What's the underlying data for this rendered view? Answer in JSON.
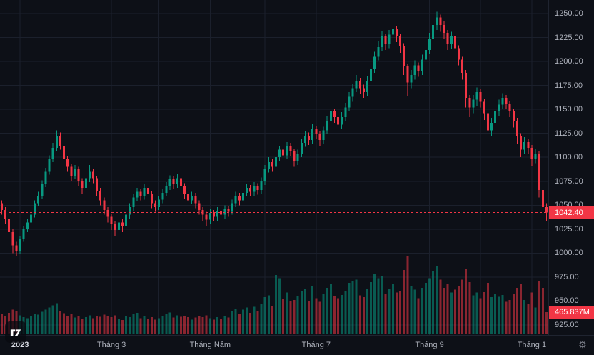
{
  "icons": {
    "gear": "⚙"
  },
  "chart_data": {
    "type": "candlestick",
    "legend": "price with volume overlay",
    "x_ticks": [
      {
        "label": "2023",
        "index": 5,
        "year": true
      },
      {
        "label": "Tháng 3",
        "index": 30
      },
      {
        "label": "Tháng Năm",
        "index": 57
      },
      {
        "label": "Tháng 7",
        "index": 86
      },
      {
        "label": "Tháng 9",
        "index": 117
      },
      {
        "label": "Tháng 1",
        "index": 145
      }
    ],
    "minor_grid_indices": [
      17,
      43,
      72,
      101,
      131
    ],
    "y_ticks": [
      "1250.00",
      "1225.00",
      "1200.00",
      "1175.00",
      "1150.00",
      "1125.00",
      "1100.00",
      "1075.00",
      "1050.00",
      "1025.00",
      "1000.00",
      "975.00",
      "950.00",
      "925.00"
    ],
    "ylim": [
      925,
      1250
    ],
    "grid": true,
    "last_price": {
      "label": "1042.40",
      "value": 1042.4,
      "direction": "down"
    },
    "volume_badge": {
      "label": "465.837M",
      "value": 465.837
    },
    "ohlcv_columns": [
      "open",
      "high",
      "low",
      "close",
      "volume_millions"
    ],
    "candles": [
      [
        1052,
        1055,
        1040,
        1045,
        420
      ],
      [
        1045,
        1048,
        1030,
        1036,
        380
      ],
      [
        1036,
        1038,
        1015,
        1022,
        450
      ],
      [
        1022,
        1025,
        1000,
        1008,
        520
      ],
      [
        1008,
        1012,
        997,
        1002,
        480
      ],
      [
        1002,
        1018,
        999,
        1015,
        400
      ],
      [
        1015,
        1028,
        1012,
        1025,
        360
      ],
      [
        1025,
        1036,
        1022,
        1032,
        340
      ],
      [
        1032,
        1044,
        1028,
        1040,
        390
      ],
      [
        1040,
        1055,
        1037,
        1052,
        430
      ],
      [
        1052,
        1064,
        1049,
        1060,
        410
      ],
      [
        1060,
        1076,
        1057,
        1072,
        470
      ],
      [
        1072,
        1089,
        1069,
        1085,
        520
      ],
      [
        1085,
        1102,
        1082,
        1098,
        560
      ],
      [
        1098,
        1115,
        1095,
        1110,
        610
      ],
      [
        1110,
        1128,
        1107,
        1122,
        650
      ],
      [
        1122,
        1126,
        1108,
        1112,
        480
      ],
      [
        1112,
        1115,
        1094,
        1098,
        440
      ],
      [
        1098,
        1101,
        1085,
        1090,
        390
      ],
      [
        1090,
        1093,
        1075,
        1080,
        420
      ],
      [
        1080,
        1092,
        1077,
        1088,
        350
      ],
      [
        1088,
        1090,
        1070,
        1075,
        380
      ],
      [
        1075,
        1078,
        1062,
        1068,
        330
      ],
      [
        1068,
        1082,
        1065,
        1078,
        360
      ],
      [
        1078,
        1092,
        1074,
        1085,
        400
      ],
      [
        1085,
        1088,
        1073,
        1078,
        340
      ],
      [
        1078,
        1080,
        1060,
        1065,
        390
      ],
      [
        1065,
        1068,
        1050,
        1055,
        370
      ],
      [
        1055,
        1058,
        1040,
        1045,
        410
      ],
      [
        1045,
        1048,
        1032,
        1038,
        380
      ],
      [
        1038,
        1041,
        1024,
        1030,
        360
      ],
      [
        1030,
        1033,
        1018,
        1024,
        400
      ],
      [
        1024,
        1036,
        1021,
        1032,
        320
      ],
      [
        1032,
        1036,
        1022,
        1028,
        300
      ],
      [
        1028,
        1044,
        1025,
        1040,
        380
      ],
      [
        1040,
        1052,
        1036,
        1048,
        360
      ],
      [
        1048,
        1062,
        1044,
        1058,
        420
      ],
      [
        1058,
        1068,
        1054,
        1064,
        450
      ],
      [
        1064,
        1067,
        1055,
        1060,
        340
      ],
      [
        1060,
        1072,
        1056,
        1068,
        380
      ],
      [
        1068,
        1071,
        1057,
        1062,
        330
      ],
      [
        1062,
        1065,
        1047,
        1052,
        360
      ],
      [
        1052,
        1055,
        1043,
        1048,
        310
      ],
      [
        1048,
        1060,
        1045,
        1056,
        340
      ],
      [
        1056,
        1067,
        1052,
        1063,
        390
      ],
      [
        1063,
        1074,
        1059,
        1070,
        430
      ],
      [
        1070,
        1081,
        1066,
        1077,
        460
      ],
      [
        1077,
        1080,
        1067,
        1072,
        350
      ],
      [
        1072,
        1083,
        1068,
        1078,
        400
      ],
      [
        1078,
        1081,
        1065,
        1070,
        370
      ],
      [
        1070,
        1073,
        1057,
        1062,
        390
      ],
      [
        1062,
        1065,
        1050,
        1055,
        360
      ],
      [
        1055,
        1064,
        1051,
        1060,
        310
      ],
      [
        1060,
        1063,
        1047,
        1052,
        350
      ],
      [
        1052,
        1055,
        1040,
        1045,
        380
      ],
      [
        1045,
        1048,
        1034,
        1040,
        360
      ],
      [
        1040,
        1043,
        1028,
        1035,
        400
      ],
      [
        1035,
        1046,
        1031,
        1042,
        340
      ],
      [
        1042,
        1045,
        1033,
        1038,
        310
      ],
      [
        1038,
        1048,
        1034,
        1044,
        360
      ],
      [
        1044,
        1047,
        1035,
        1040,
        330
      ],
      [
        1040,
        1050,
        1036,
        1046,
        380
      ],
      [
        1046,
        1049,
        1038,
        1043,
        350
      ],
      [
        1043,
        1056,
        1040,
        1052,
        480
      ],
      [
        1052,
        1064,
        1048,
        1060,
        540
      ],
      [
        1060,
        1063,
        1050,
        1055,
        420
      ],
      [
        1055,
        1067,
        1052,
        1063,
        520
      ],
      [
        1063,
        1072,
        1059,
        1068,
        560
      ],
      [
        1068,
        1071,
        1059,
        1064,
        450
      ],
      [
        1064,
        1074,
        1060,
        1070,
        580
      ],
      [
        1070,
        1073,
        1061,
        1066,
        490
      ],
      [
        1066,
        1079,
        1062,
        1075,
        640
      ],
      [
        1075,
        1092,
        1071,
        1088,
        780
      ],
      [
        1088,
        1100,
        1084,
        1095,
        820
      ],
      [
        1095,
        1098,
        1085,
        1090,
        600
      ],
      [
        1090,
        1105,
        1086,
        1100,
        1250
      ],
      [
        1100,
        1112,
        1096,
        1108,
        1180
      ],
      [
        1108,
        1111,
        1097,
        1102,
        750
      ],
      [
        1102,
        1116,
        1098,
        1112,
        880
      ],
      [
        1112,
        1115,
        1101,
        1106,
        690
      ],
      [
        1106,
        1109,
        1090,
        1096,
        720
      ],
      [
        1096,
        1108,
        1092,
        1104,
        800
      ],
      [
        1104,
        1119,
        1100,
        1115,
        900
      ],
      [
        1115,
        1127,
        1111,
        1122,
        950
      ],
      [
        1122,
        1126,
        1113,
        1118,
        700
      ],
      [
        1118,
        1135,
        1114,
        1130,
        1020
      ],
      [
        1130,
        1133,
        1119,
        1124,
        760
      ],
      [
        1124,
        1127,
        1112,
        1118,
        680
      ],
      [
        1118,
        1132,
        1114,
        1128,
        850
      ],
      [
        1128,
        1143,
        1124,
        1138,
        980
      ],
      [
        1138,
        1153,
        1134,
        1148,
        1050
      ],
      [
        1148,
        1151,
        1136,
        1142,
        800
      ],
      [
        1142,
        1145,
        1128,
        1134,
        760
      ],
      [
        1134,
        1147,
        1130,
        1142,
        830
      ],
      [
        1142,
        1157,
        1138,
        1152,
        920
      ],
      [
        1152,
        1168,
        1148,
        1163,
        1080
      ],
      [
        1163,
        1177,
        1158,
        1172,
        1120
      ],
      [
        1172,
        1186,
        1168,
        1180,
        1150
      ],
      [
        1180,
        1183,
        1166,
        1172,
        820
      ],
      [
        1172,
        1176,
        1162,
        1168,
        780
      ],
      [
        1168,
        1185,
        1164,
        1180,
        950
      ],
      [
        1180,
        1197,
        1176,
        1192,
        1100
      ],
      [
        1192,
        1210,
        1188,
        1205,
        1280
      ],
      [
        1205,
        1221,
        1201,
        1215,
        1180
      ],
      [
        1215,
        1232,
        1211,
        1226,
        1220
      ],
      [
        1226,
        1229,
        1212,
        1218,
        850
      ],
      [
        1218,
        1233,
        1214,
        1228,
        960
      ],
      [
        1228,
        1241,
        1224,
        1234,
        1050
      ],
      [
        1234,
        1237,
        1220,
        1226,
        880
      ],
      [
        1226,
        1229,
        1209,
        1216,
        920
      ],
      [
        1216,
        1219,
        1186,
        1195,
        1350
      ],
      [
        1195,
        1198,
        1164,
        1178,
        1650
      ],
      [
        1178,
        1191,
        1172,
        1186,
        1020
      ],
      [
        1186,
        1201,
        1181,
        1196,
        940
      ],
      [
        1196,
        1199,
        1184,
        1190,
        760
      ],
      [
        1190,
        1207,
        1186,
        1202,
        980
      ],
      [
        1202,
        1217,
        1197,
        1212,
        1080
      ],
      [
        1212,
        1230,
        1208,
        1224,
        1180
      ],
      [
        1224,
        1244,
        1219,
        1238,
        1320
      ],
      [
        1238,
        1252,
        1233,
        1246,
        1430
      ],
      [
        1246,
        1249,
        1231,
        1238,
        1150
      ],
      [
        1238,
        1242,
        1224,
        1230,
        980
      ],
      [
        1230,
        1233,
        1212,
        1218,
        1060
      ],
      [
        1218,
        1231,
        1213,
        1226,
        880
      ],
      [
        1226,
        1229,
        1208,
        1214,
        940
      ],
      [
        1214,
        1217,
        1196,
        1202,
        1020
      ],
      [
        1202,
        1205,
        1181,
        1188,
        1150
      ],
      [
        1188,
        1191,
        1152,
        1162,
        1380
      ],
      [
        1162,
        1165,
        1142,
        1152,
        1100
      ],
      [
        1152,
        1165,
        1146,
        1160,
        820
      ],
      [
        1160,
        1173,
        1154,
        1168,
        880
      ],
      [
        1168,
        1171,
        1152,
        1158,
        760
      ],
      [
        1158,
        1161,
        1139,
        1146,
        890
      ],
      [
        1146,
        1149,
        1119,
        1128,
        1080
      ],
      [
        1128,
        1141,
        1122,
        1136,
        780
      ],
      [
        1136,
        1153,
        1131,
        1148,
        860
      ],
      [
        1148,
        1160,
        1143,
        1155,
        790
      ],
      [
        1155,
        1167,
        1150,
        1162,
        830
      ],
      [
        1162,
        1165,
        1150,
        1156,
        680
      ],
      [
        1156,
        1159,
        1142,
        1148,
        720
      ],
      [
        1148,
        1151,
        1131,
        1138,
        850
      ],
      [
        1138,
        1141,
        1114,
        1122,
        980
      ],
      [
        1122,
        1125,
        1100,
        1108,
        1050
      ],
      [
        1108,
        1121,
        1103,
        1116,
        720
      ],
      [
        1116,
        1119,
        1104,
        1110,
        640
      ],
      [
        1110,
        1113,
        1091,
        1098,
        880
      ],
      [
        1098,
        1109,
        1094,
        1104,
        560
      ],
      [
        1104,
        1107,
        1058,
        1066,
        1120
      ],
      [
        1066,
        1069,
        1038,
        1048,
        980
      ],
      [
        1048,
        1052,
        1033,
        1042.4,
        465.837
      ]
    ],
    "colors": {
      "bg": "#0d1017",
      "grid": "#1b202c",
      "up": "#089981",
      "down": "#f23645",
      "volume_up": "rgba(8,153,129,0.55)",
      "volume_down": "rgba(242,54,69,0.55)",
      "price_line": "#f23645",
      "axis_text": "#aeb2bc",
      "year_text": "#d8dbe3",
      "axis_border": "#1f2430",
      "badge_text": "#ffffff"
    }
  }
}
